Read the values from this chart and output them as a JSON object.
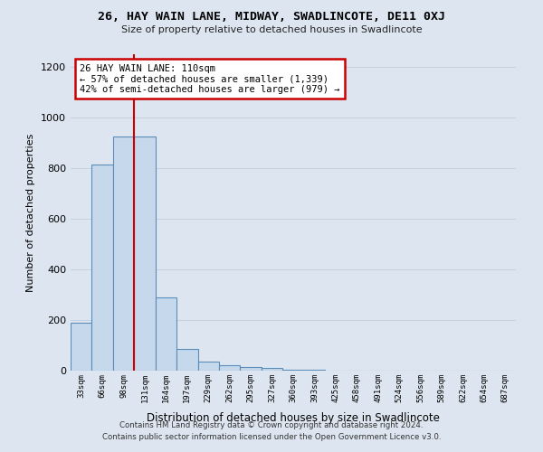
{
  "title": "26, HAY WAIN LANE, MIDWAY, SWADLINCOTE, DE11 0XJ",
  "subtitle": "Size of property relative to detached houses in Swadlincote",
  "xlabel": "Distribution of detached houses by size in Swadlincote",
  "ylabel": "Number of detached properties",
  "bin_labels": [
    "33sqm",
    "66sqm",
    "98sqm",
    "131sqm",
    "164sqm",
    "197sqm",
    "229sqm",
    "262sqm",
    "295sqm",
    "327sqm",
    "360sqm",
    "393sqm",
    "425sqm",
    "458sqm",
    "491sqm",
    "524sqm",
    "556sqm",
    "589sqm",
    "622sqm",
    "654sqm",
    "687sqm"
  ],
  "bar_values": [
    190,
    815,
    925,
    925,
    290,
    85,
    35,
    20,
    15,
    10,
    3,
    2,
    1,
    1,
    0,
    0,
    0,
    0,
    0,
    0,
    0
  ],
  "bar_color": "#c5d8ec",
  "bar_edge_color": "#5b8db8",
  "grid_color": "#c5cfe0",
  "bg_color": "#dde6f0",
  "vline_color": "#cc0000",
  "vline_pos": 2.5,
  "annotation_text": "26 HAY WAIN LANE: 110sqm\n← 57% of detached houses are smaller (1,339)\n42% of semi-detached houses are larger (979) →",
  "annotation_box_color": "#ffffff",
  "annotation_box_edge": "#cc0000",
  "footer_line1": "Contains HM Land Registry data © Crown copyright and database right 2024.",
  "footer_line2": "Contains public sector information licensed under the Open Government Licence v3.0.",
  "ylim": [
    0,
    1250
  ],
  "yticks": [
    0,
    200,
    400,
    600,
    800,
    1000,
    1200
  ]
}
